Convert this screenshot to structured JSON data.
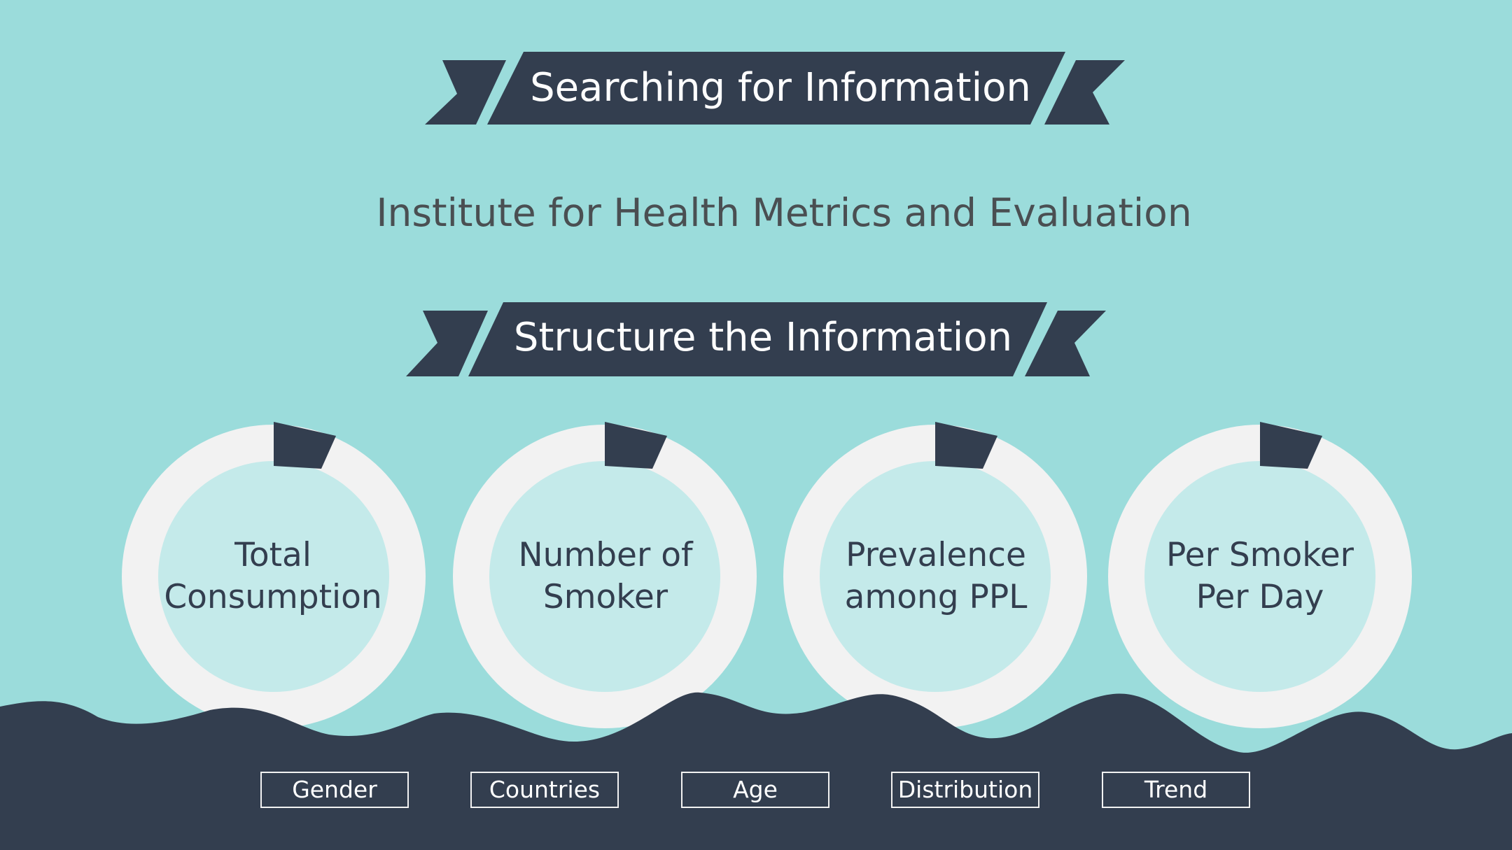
{
  "colors": {
    "background": "#9bdcdb",
    "navy": "#333e4f",
    "ring": "#f2f2f2",
    "inner": "#c4eaea",
    "subtitle": "#4a4f52",
    "white": "#ffffff"
  },
  "banners": {
    "top": "Searching for Information",
    "middle": "Structure the Information"
  },
  "subtitle": "Institute for Health Metrics and Evaluation",
  "circles": [
    {
      "line1": "Total",
      "line2": "Consumption"
    },
    {
      "line1": "Number of",
      "line2": "Smoker"
    },
    {
      "line1": "Prevalence",
      "line2": "among PPL"
    },
    {
      "line1": "Per Smoker",
      "line2": "Per Day"
    }
  ],
  "tags": [
    "Gender",
    "Countries",
    "Age",
    "Distribution",
    "Trend"
  ]
}
